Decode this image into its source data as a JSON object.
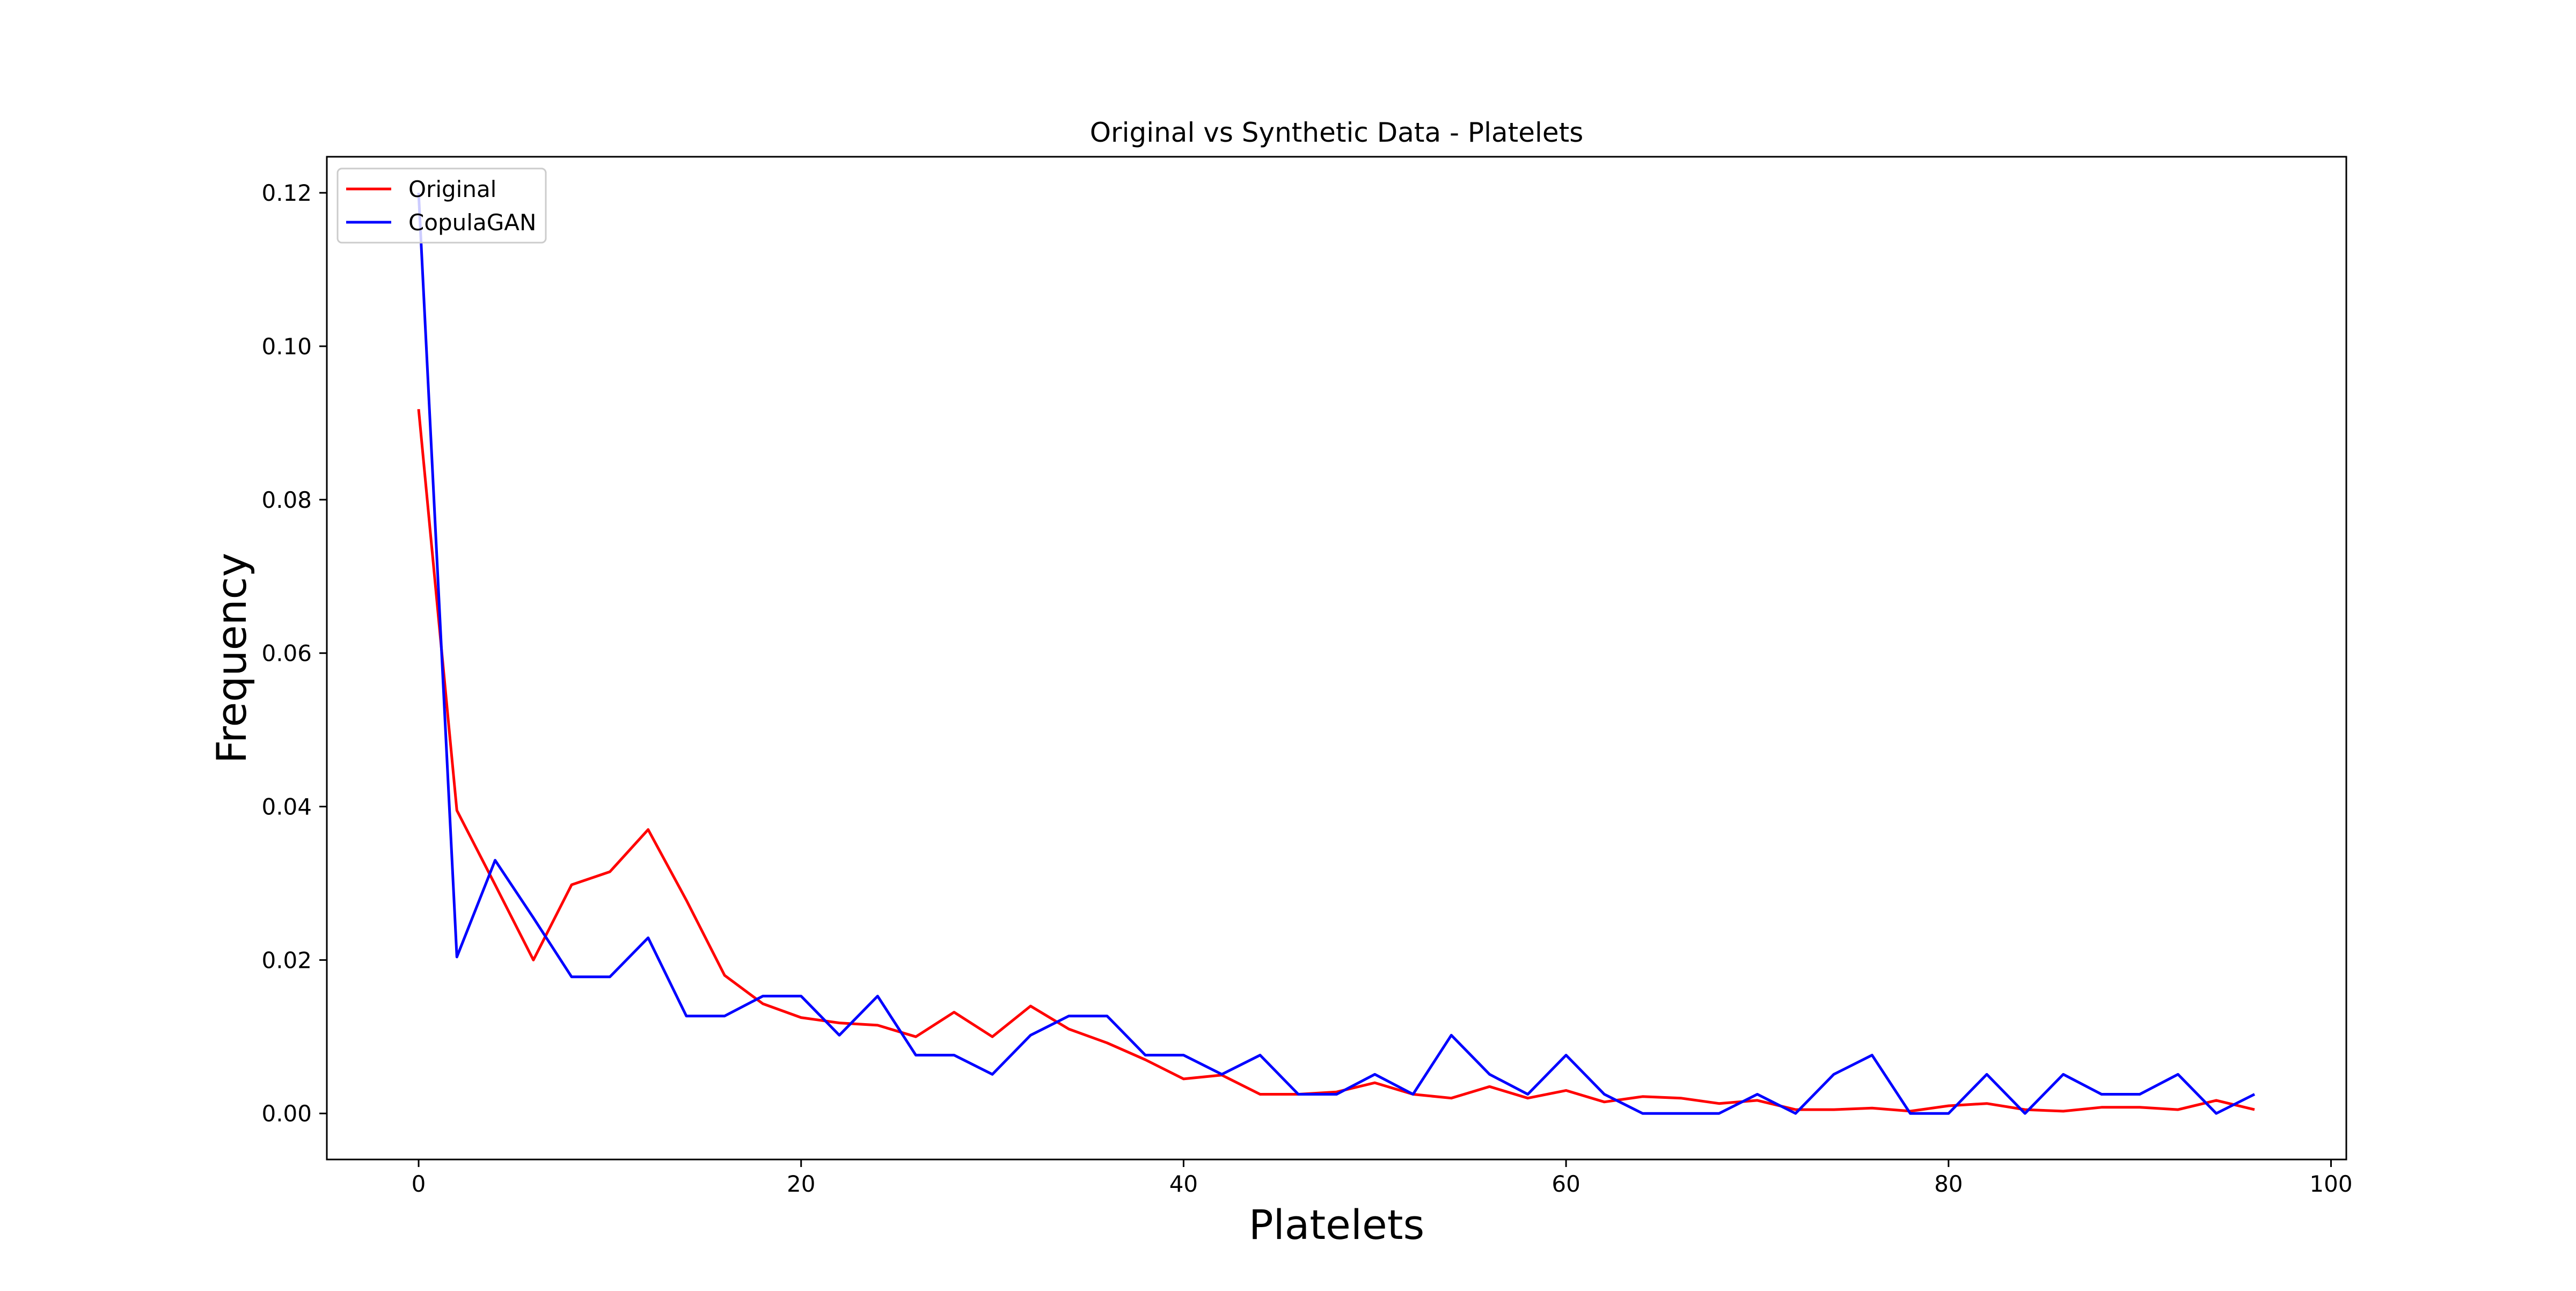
{
  "chart_data": {
    "type": "line",
    "title": "Original vs Synthetic Data - Platelets",
    "xlabel": "Platelets",
    "ylabel": "Frequency",
    "xlim": [
      -4.8,
      100.8
    ],
    "ylim": [
      -0.006,
      0.1247
    ],
    "xticks": [
      0,
      20,
      40,
      60,
      80,
      100
    ],
    "xtick_labels": [
      "0",
      "20",
      "40",
      "60",
      "80",
      "100"
    ],
    "yticks": [
      0.0,
      0.02,
      0.04,
      0.06,
      0.08,
      0.1,
      0.12
    ],
    "ytick_labels": [
      "0.00",
      "0.02",
      "0.04",
      "0.06",
      "0.08",
      "0.10",
      "0.12"
    ],
    "grid": false,
    "legend_position": "top-left",
    "x": [
      0,
      2,
      4,
      6,
      8,
      10,
      12,
      14,
      16,
      18,
      20,
      22,
      24,
      26,
      28,
      30,
      32,
      34,
      36,
      38,
      40,
      42,
      44,
      46,
      48,
      50,
      52,
      54,
      56,
      58,
      60,
      62,
      64,
      66,
      68,
      70,
      72,
      74,
      76,
      78,
      80,
      82,
      84,
      86,
      88,
      90,
      92,
      94,
      96
    ],
    "series": [
      {
        "name": "Original",
        "color": "#ff0000",
        "values": [
          0.0918,
          0.0395,
          0.0298,
          0.02,
          0.0298,
          0.0315,
          0.037,
          0.0278,
          0.018,
          0.0143,
          0.0125,
          0.0118,
          0.0115,
          0.01,
          0.0132,
          0.01,
          0.014,
          0.011,
          0.0092,
          0.007,
          0.0045,
          0.005,
          0.0025,
          0.0025,
          0.0028,
          0.004,
          0.0025,
          0.002,
          0.0035,
          0.002,
          0.003,
          0.0015,
          0.0022,
          0.002,
          0.0013,
          0.0017,
          0.0005,
          0.0005,
          0.0007,
          0.0003,
          0.001,
          0.0013,
          0.0005,
          0.0003,
          0.0008,
          0.0008,
          0.0005,
          0.0017,
          0.0005
        ]
      },
      {
        "name": "CopulaGAN",
        "color": "#0000ff",
        "values": [
          0.12,
          0.0204,
          0.033,
          0.0255,
          0.0178,
          0.0178,
          0.0229,
          0.0127,
          0.0127,
          0.0153,
          0.0153,
          0.0102,
          0.0153,
          0.0076,
          0.0076,
          0.0051,
          0.0102,
          0.0127,
          0.0127,
          0.0076,
          0.0076,
          0.0051,
          0.0076,
          0.0025,
          0.0025,
          0.0051,
          0.0025,
          0.0102,
          0.0051,
          0.0025,
          0.0076,
          0.0025,
          0.0,
          0.0,
          0.0,
          0.0025,
          0.0,
          0.0051,
          0.0076,
          0.0,
          0.0,
          0.0051,
          0.0,
          0.0051,
          0.0025,
          0.0025,
          0.0051,
          0.0,
          0.0025
        ]
      }
    ]
  }
}
